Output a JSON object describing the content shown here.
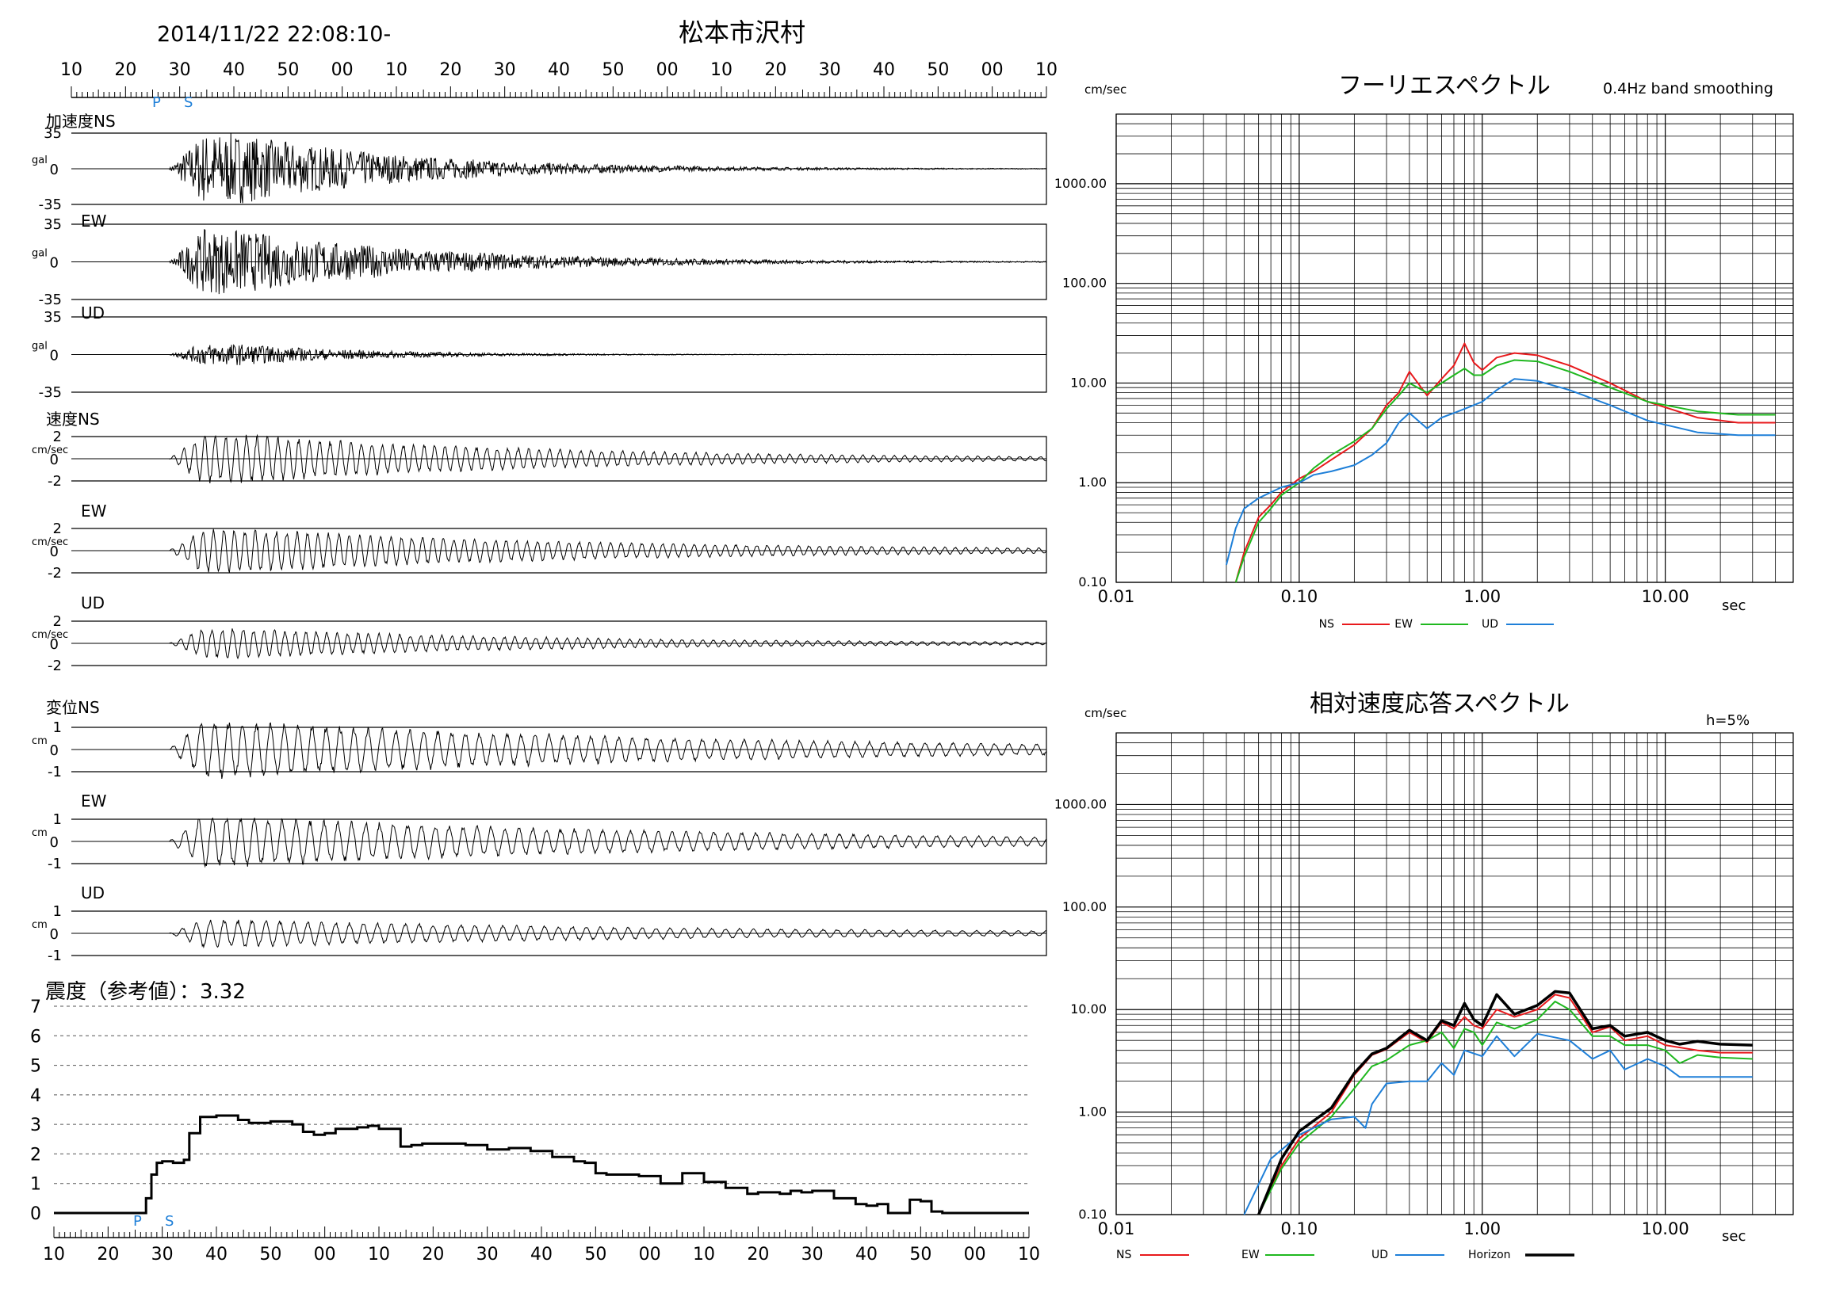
{
  "header": {
    "datetime": "2014/11/22 22:08:10-",
    "station": "松本市沢村"
  },
  "time_axis": {
    "top_labels": [
      "10",
      "20",
      "30",
      "40",
      "50",
      "00",
      "10",
      "20",
      "30",
      "40",
      "50",
      "00",
      "10",
      "20",
      "30",
      "40",
      "50",
      "00",
      "10"
    ],
    "bottom_labels": [
      "10",
      "20",
      "30",
      "40",
      "50",
      "00",
      "10",
      "20",
      "30",
      "40",
      "50",
      "00",
      "10",
      "20",
      "30",
      "40",
      "50",
      "00",
      "10"
    ],
    "p_marker": "P",
    "s_marker": "S"
  },
  "waveforms": [
    {
      "group": "加速度",
      "component": "NS",
      "label": "加速度NS",
      "unit": "gal",
      "max": "35",
      "zero": "0",
      "min": "-35",
      "amp": 35,
      "onset": 0.1,
      "decay": 0.18
    },
    {
      "group": "",
      "component": "EW",
      "label": "EW",
      "unit": "gal",
      "max": "35",
      "zero": "0",
      "min": "-35",
      "amp": 30,
      "onset": 0.1,
      "decay": 0.2
    },
    {
      "group": "",
      "component": "UD",
      "label": "UD",
      "unit": "gal",
      "max": "35",
      "zero": "0",
      "min": "-35",
      "amp": 10,
      "onset": 0.1,
      "decay": 0.14
    },
    {
      "group": "速度",
      "component": "NS",
      "label": "速度NS",
      "unit": "cm/sec",
      "max": "2",
      "zero": "0",
      "min": "-2",
      "amp": 2.1,
      "onset": 0.1,
      "decay": 0.35
    },
    {
      "group": "",
      "component": "EW",
      "label": "EW",
      "unit": "cm/sec",
      "max": "2",
      "zero": "0",
      "min": "-2",
      "amp": 1.9,
      "onset": 0.1,
      "decay": 0.4
    },
    {
      "group": "",
      "component": "UD",
      "label": "UD",
      "unit": "cm/sec",
      "max": "2",
      "zero": "0",
      "min": "-2",
      "amp": 1.3,
      "onset": 0.1,
      "decay": 0.35
    },
    {
      "group": "変位",
      "component": "NS",
      "label": "変位NS",
      "unit": "cm",
      "max": "1",
      "zero": "0",
      "min": "-1",
      "amp": 1.25,
      "onset": 0.1,
      "decay": 0.5
    },
    {
      "group": "",
      "component": "EW",
      "label": "EW",
      "unit": "cm",
      "max": "1",
      "zero": "0",
      "min": "-1",
      "amp": 1.1,
      "onset": 0.1,
      "decay": 0.5
    },
    {
      "group": "",
      "component": "UD",
      "label": "UD",
      "unit": "cm",
      "max": "1",
      "zero": "0",
      "min": "-1",
      "amp": 0.6,
      "onset": 0.1,
      "decay": 0.5
    }
  ],
  "intensity": {
    "title": "震度（参考値）：3.32",
    "y_ticks": [
      "7",
      "6",
      "5",
      "4",
      "3",
      "2",
      "1",
      "0"
    ],
    "chart_data": {
      "type": "line",
      "x_seconds": [
        0,
        16,
        17,
        18,
        19,
        20,
        22,
        24,
        25,
        27,
        30,
        34,
        36,
        40,
        44,
        46,
        48,
        50,
        52,
        56,
        58,
        60,
        64,
        66,
        68,
        72,
        76,
        80,
        84,
        88,
        92,
        96,
        98,
        100,
        102,
        104,
        108,
        110,
        112,
        116,
        120,
        124,
        128,
        130,
        132,
        134,
        136,
        138,
        140,
        144,
        148,
        150,
        152,
        154,
        156,
        158,
        160,
        162,
        164,
        166,
        168,
        170,
        174,
        178,
        180
      ],
      "values": [
        0,
        0,
        0.5,
        1.3,
        1.7,
        1.75,
        1.7,
        1.8,
        2.7,
        3.25,
        3.3,
        3.15,
        3.05,
        3.1,
        3.0,
        2.75,
        2.65,
        2.7,
        2.85,
        2.9,
        2.95,
        2.85,
        2.25,
        2.3,
        2.35,
        2.35,
        2.3,
        2.15,
        2.2,
        2.1,
        1.9,
        1.75,
        1.7,
        1.35,
        1.3,
        1.3,
        1.25,
        1.25,
        1.0,
        1.35,
        1.05,
        0.85,
        0.65,
        0.7,
        0.7,
        0.65,
        0.75,
        0.7,
        0.75,
        0.5,
        0.3,
        0.25,
        0.3,
        0.0,
        0.0,
        0.45,
        0.4,
        0.05,
        0.0,
        0.0,
        0.0,
        0.0,
        0.0,
        0.0,
        0.0
      ],
      "ylim": [
        0,
        7
      ]
    }
  },
  "fourier": {
    "title": "フーリエスペクトル",
    "subtitle": "0.4Hz band smoothing",
    "y_unit": "cm/sec",
    "x_unit": "sec",
    "y_tick_labels": [
      "1000.00",
      "100.00",
      "10.00",
      "1.00",
      "0.10"
    ],
    "x_tick_labels": [
      "0.01",
      "0.10",
      "1.00",
      "10.00"
    ],
    "legend": [
      {
        "name": "NS",
        "color": "#e8191c"
      },
      {
        "name": "EW",
        "color": "#1fb81f"
      },
      {
        "name": "UD",
        "color": "#1e7fd8"
      }
    ],
    "chart_data": {
      "type": "line",
      "xscale": "log",
      "yscale": "log",
      "xlim": [
        0.01,
        50
      ],
      "ylim": [
        0.1,
        5000
      ],
      "series": [
        {
          "name": "NS",
          "x": [
            0.045,
            0.05,
            0.06,
            0.07,
            0.08,
            0.1,
            0.12,
            0.15,
            0.2,
            0.25,
            0.3,
            0.35,
            0.4,
            0.5,
            0.6,
            0.7,
            0.8,
            0.9,
            1.0,
            1.2,
            1.5,
            2.0,
            3.0,
            5.0,
            8.0,
            15.0,
            25.0,
            40.0
          ],
          "y": [
            0.1,
            0.2,
            0.45,
            0.6,
            0.8,
            1.1,
            1.3,
            1.7,
            2.4,
            3.5,
            6.0,
            8.0,
            13.0,
            7.5,
            11.0,
            15.0,
            25.0,
            16.0,
            13.5,
            18.0,
            20.0,
            19.0,
            15.0,
            10.0,
            6.5,
            4.5,
            4.0,
            4.0
          ]
        },
        {
          "name": "EW",
          "x": [
            0.045,
            0.05,
            0.06,
            0.07,
            0.08,
            0.1,
            0.12,
            0.15,
            0.2,
            0.25,
            0.3,
            0.35,
            0.4,
            0.5,
            0.6,
            0.7,
            0.8,
            0.9,
            1.0,
            1.2,
            1.5,
            2.0,
            3.0,
            5.0,
            8.0,
            15.0,
            25.0,
            40.0
          ],
          "y": [
            0.1,
            0.18,
            0.4,
            0.55,
            0.75,
            1.0,
            1.4,
            1.9,
            2.6,
            3.5,
            5.5,
            7.5,
            10.0,
            8.0,
            10.0,
            12.0,
            14.0,
            12.0,
            12.0,
            15.0,
            17.0,
            16.5,
            13.0,
            9.0,
            6.5,
            5.2,
            4.8,
            4.8
          ]
        },
        {
          "name": "UD",
          "x": [
            0.04,
            0.045,
            0.05,
            0.06,
            0.07,
            0.08,
            0.1,
            0.12,
            0.15,
            0.2,
            0.25,
            0.3,
            0.35,
            0.4,
            0.5,
            0.6,
            0.7,
            0.8,
            1.0,
            1.2,
            1.5,
            2.0,
            3.0,
            5.0,
            8.0,
            15.0,
            25.0,
            40.0
          ],
          "y": [
            0.15,
            0.35,
            0.55,
            0.7,
            0.8,
            0.9,
            1.0,
            1.2,
            1.3,
            1.5,
            1.9,
            2.5,
            4.0,
            5.0,
            3.5,
            4.5,
            5.0,
            5.5,
            6.5,
            8.5,
            11.0,
            10.5,
            8.5,
            6.0,
            4.2,
            3.2,
            3.0,
            3.0
          ]
        }
      ]
    }
  },
  "response": {
    "title": "相対速度応答スペクトル",
    "damping": "h=5%",
    "y_unit": "cm/sec",
    "x_unit": "sec",
    "y_tick_labels": [
      "1000.00",
      "100.00",
      "10.00",
      "1.00",
      "0.10"
    ],
    "x_tick_labels": [
      "0.01",
      "0.10",
      "1.00",
      "10.00"
    ],
    "legend": [
      {
        "name": "NS",
        "color": "#e8191c"
      },
      {
        "name": "EW",
        "color": "#1fb81f"
      },
      {
        "name": "UD",
        "color": "#1e7fd8"
      },
      {
        "name": "Horizon",
        "color": "#000000"
      }
    ],
    "chart_data": {
      "type": "line",
      "xscale": "log",
      "yscale": "log",
      "xlim": [
        0.01,
        50
      ],
      "ylim": [
        0.1,
        5000
      ],
      "series": [
        {
          "name": "NS",
          "x": [
            0.06,
            0.08,
            0.1,
            0.15,
            0.2,
            0.25,
            0.3,
            0.4,
            0.5,
            0.6,
            0.7,
            0.8,
            0.9,
            1.0,
            1.2,
            1.5,
            2.0,
            2.5,
            3.0,
            4.0,
            5.0,
            6.0,
            8.0,
            10.0,
            15.0,
            20.0,
            30.0
          ],
          "y": [
            0.1,
            0.3,
            0.55,
            1.0,
            2.3,
            3.6,
            4.1,
            6.0,
            4.8,
            7.5,
            6.5,
            8.5,
            7.0,
            6.5,
            10.0,
            8.5,
            10.0,
            14.0,
            13.0,
            6.0,
            6.8,
            5.0,
            5.5,
            4.5,
            4.0,
            3.8,
            3.8
          ]
        },
        {
          "name": "EW",
          "x": [
            0.06,
            0.08,
            0.1,
            0.15,
            0.2,
            0.25,
            0.3,
            0.4,
            0.5,
            0.6,
            0.7,
            0.8,
            0.9,
            1.0,
            1.2,
            1.5,
            2.0,
            2.5,
            3.0,
            4.0,
            5.0,
            6.0,
            8.0,
            10.0,
            12.0,
            15.0,
            20.0,
            30.0
          ],
          "y": [
            0.1,
            0.28,
            0.5,
            0.9,
            1.7,
            2.8,
            3.2,
            4.5,
            5.0,
            6.0,
            4.2,
            6.5,
            6.0,
            4.5,
            7.5,
            6.5,
            8.0,
            12.0,
            10.0,
            5.5,
            5.5,
            4.5,
            4.5,
            4.0,
            3.0,
            3.6,
            3.4,
            3.3
          ]
        },
        {
          "name": "UD",
          "x": [
            0.05,
            0.07,
            0.1,
            0.15,
            0.2,
            0.23,
            0.25,
            0.3,
            0.4,
            0.5,
            0.6,
            0.7,
            0.8,
            1.0,
            1.2,
            1.5,
            2.0,
            3.0,
            4.0,
            5.0,
            6.0,
            8.0,
            10.0,
            12.0,
            15.0,
            20.0,
            30.0
          ],
          "y": [
            0.1,
            0.35,
            0.6,
            0.85,
            0.9,
            0.7,
            1.2,
            1.9,
            2.0,
            2.0,
            3.0,
            2.3,
            4.0,
            3.5,
            5.5,
            3.5,
            5.8,
            5.0,
            3.3,
            4.0,
            2.6,
            3.3,
            2.8,
            2.2,
            2.2,
            2.2,
            2.2
          ]
        },
        {
          "name": "Horizon",
          "x": [
            0.06,
            0.08,
            0.1,
            0.15,
            0.2,
            0.25,
            0.3,
            0.4,
            0.5,
            0.6,
            0.7,
            0.8,
            0.9,
            1.0,
            1.2,
            1.5,
            2.0,
            2.5,
            3.0,
            4.0,
            5.0,
            6.0,
            8.0,
            10.0,
            12.0,
            15.0,
            20.0,
            30.0
          ],
          "y": [
            0.1,
            0.35,
            0.65,
            1.1,
            2.4,
            3.7,
            4.2,
            6.3,
            5.0,
            7.8,
            7.0,
            11.5,
            8.0,
            7.0,
            14.0,
            9.0,
            11.0,
            15.0,
            14.5,
            6.5,
            7.0,
            5.5,
            6.0,
            5.0,
            4.6,
            4.9,
            4.6,
            4.5
          ]
        }
      ]
    }
  }
}
